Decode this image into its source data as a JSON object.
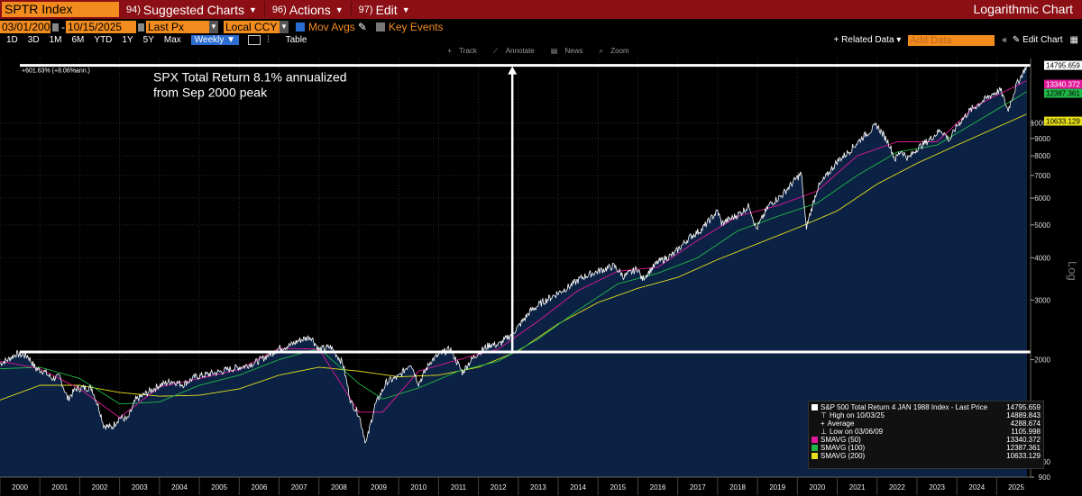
{
  "toolbar": {
    "ticker": "SPTR Index",
    "suggested_num": "94)",
    "suggested_label": "Suggested Charts",
    "actions_num": "96)",
    "actions_label": "Actions",
    "edit_num": "97)",
    "edit_label": "Edit",
    "chart_type": "Logarithmic Chart"
  },
  "inputs": {
    "start_date": "03/01/2000",
    "end_date": "10/15/2025",
    "price_field": "Last Px",
    "currency": "Local CCY",
    "mov_avgs": "Mov Avgs",
    "key_events": "Key Events"
  },
  "periods": {
    "items": [
      "1D",
      "3D",
      "1M",
      "6M",
      "YTD",
      "1Y",
      "5Y",
      "Max"
    ],
    "frequency": "Weekly",
    "table": "Table",
    "related_data": "Related Data",
    "add_data_placeholder": "Add Data",
    "edit_chart": "Edit Chart"
  },
  "tools": {
    "track": "Track",
    "annotate": "Annotate",
    "news": "News",
    "zoom": "Zoom"
  },
  "colors": {
    "accent": "#f28c1e",
    "titlebar": "#8b0f14",
    "price_line": "#ffffff",
    "sma50": "#e0189a",
    "sma100": "#20b848",
    "sma200": "#e6e01a",
    "area_fill": "#0c2244"
  },
  "legend": {
    "title": "S&P 500 Total Return 4 JAN 1988 Index - Last Price",
    "last_price": "14795.659",
    "high_label": "High on 10/03/25",
    "high_value": "14889.843",
    "avg_label": "Average",
    "avg_value": "4288.674",
    "low_label": "Low on 03/06/09",
    "low_value": "1105.998",
    "sma50_label": "SMAVG (50)",
    "sma50_value": "13340.372",
    "sma100_label": "SMAVG (100)",
    "sma100_value": "12387.361",
    "sma200_label": "SMAVG (200)",
    "sma200_value": "10633.129"
  },
  "chart_data": {
    "type": "line",
    "scale": "log",
    "ylim": [
      900,
      15500
    ],
    "xlim": [
      2000.0,
      2025.85
    ],
    "y_ticks": [
      900,
      1000,
      2000,
      3000,
      4000,
      5000,
      6000,
      7000,
      8000,
      9000,
      10000
    ],
    "x_ticks": [
      "2000",
      "2001",
      "2002",
      "2003",
      "2004",
      "2005",
      "2006",
      "2007",
      "2008",
      "2009",
      "2010",
      "2011",
      "2012",
      "2013",
      "2014",
      "2015",
      "2016",
      "2017",
      "2018",
      "2019",
      "2020",
      "2021",
      "2022",
      "2023",
      "2024",
      "2025"
    ],
    "annotations": {
      "text_line1": "SPX Total Return 8.1% annualized",
      "text_line2": "from Sep 2000 peak",
      "change_label": "+601.63% (+8.06%ann.)",
      "base_level": 2108,
      "top_level": 14795.659,
      "arrow_x": 2012.85
    },
    "price_tags": [
      {
        "value": 14795.659,
        "label": "14795.659",
        "color": "#ffffff",
        "text_color": "#000000"
      },
      {
        "value": 13340.372,
        "label": "13340.372",
        "color": "#e0189a",
        "text_color": "#ffffff"
      },
      {
        "value": 12387.361,
        "label": "12387.361",
        "color": "#20b848",
        "text_color": "#000000"
      },
      {
        "value": 10633.129,
        "label": "10633.129",
        "color": "#e6e01a",
        "text_color": "#000000"
      }
    ],
    "y_side_label": "Log",
    "series": [
      {
        "name": "S&P 500 Total Return",
        "x": [
          2000.0,
          2000.2,
          2000.4,
          2000.7,
          2000.9,
          2001.1,
          2001.3,
          2001.5,
          2001.7,
          2001.9,
          2002.1,
          2002.3,
          2002.5,
          2002.6,
          2002.8,
          2003.0,
          2003.2,
          2003.4,
          2003.7,
          2004.0,
          2004.3,
          2004.6,
          2004.9,
          2005.2,
          2005.5,
          2005.8,
          2006.1,
          2006.4,
          2006.7,
          2007.0,
          2007.3,
          2007.5,
          2007.8,
          2008.0,
          2008.3,
          2008.6,
          2008.8,
          2009.0,
          2009.18,
          2009.4,
          2009.7,
          2010.0,
          2010.3,
          2010.5,
          2010.8,
          2011.1,
          2011.3,
          2011.6,
          2011.75,
          2012.0,
          2012.3,
          2012.5,
          2012.8,
          2013.0,
          2013.3,
          2013.6,
          2014.0,
          2014.3,
          2014.6,
          2015.0,
          2015.4,
          2015.65,
          2016.0,
          2016.1,
          2016.5,
          2016.9,
          2017.3,
          2017.6,
          2018.0,
          2018.1,
          2018.5,
          2018.8,
          2018.97,
          2019.3,
          2019.6,
          2019.9,
          2020.1,
          2020.22,
          2020.5,
          2020.8,
          2021.0,
          2021.3,
          2021.6,
          2021.99,
          2022.3,
          2022.45,
          2022.6,
          2022.78,
          2023.0,
          2023.3,
          2023.6,
          2023.82,
          2024.0,
          2024.3,
          2024.6,
          2024.9,
          2025.1,
          2025.28,
          2025.5,
          2025.76
        ],
        "values": [
          1950,
          2000,
          2080,
          2050,
          1880,
          1850,
          1760,
          1780,
          1530,
          1640,
          1650,
          1650,
          1420,
          1280,
          1260,
          1350,
          1330,
          1520,
          1600,
          1680,
          1730,
          1690,
          1780,
          1810,
          1840,
          1880,
          1910,
          1960,
          2050,
          2160,
          2210,
          2280,
          2340,
          2140,
          2180,
          1950,
          1500,
          1380,
          1130,
          1460,
          1720,
          1780,
          1960,
          1700,
          1980,
          2100,
          2150,
          1830,
          1950,
          2100,
          2220,
          2210,
          2360,
          2500,
          2780,
          2950,
          3150,
          3300,
          3500,
          3650,
          3780,
          3520,
          3720,
          3450,
          3880,
          4100,
          4600,
          4850,
          5500,
          5050,
          5350,
          5700,
          4850,
          5750,
          6100,
          6700,
          7100,
          4900,
          6400,
          7150,
          7700,
          8250,
          9000,
          9850,
          8700,
          7800,
          8300,
          7850,
          8400,
          8900,
          9550,
          8900,
          9800,
          10800,
          11500,
          12200,
          12500,
          10900,
          13000,
          14795
        ]
      },
      {
        "name": "SMAVG (50)",
        "x": [
          2000.0,
          2001.0,
          2002.0,
          2003.0,
          2004.0,
          2005.0,
          2006.0,
          2007.0,
          2008.0,
          2009.0,
          2009.6,
          2010.5,
          2011.5,
          2012.5,
          2013.5,
          2014.5,
          2015.5,
          2016.5,
          2017.5,
          2018.5,
          2019.5,
          2020.5,
          2021.5,
          2022.5,
          2023.5,
          2024.5,
          2025.76
        ],
        "values": [
          1980,
          1880,
          1640,
          1350,
          1660,
          1760,
          1870,
          2160,
          2150,
          1400,
          1400,
          1850,
          2000,
          2150,
          2600,
          3200,
          3650,
          3750,
          4500,
          5300,
          5700,
          6300,
          8000,
          8800,
          8800,
          11300,
          13340
        ]
      },
      {
        "name": "SMAVG (100)",
        "x": [
          2000.0,
          2001.0,
          2002.0,
          2003.0,
          2004.0,
          2005.0,
          2006.0,
          2007.0,
          2008.0,
          2009.0,
          2009.6,
          2010.5,
          2011.5,
          2012.5,
          2013.5,
          2014.5,
          2015.5,
          2016.5,
          2017.5,
          2018.5,
          2019.5,
          2020.5,
          2021.5,
          2022.5,
          2023.5,
          2024.5,
          2025.76
        ],
        "values": [
          1880,
          1900,
          1760,
          1480,
          1500,
          1680,
          1800,
          2000,
          2160,
          1700,
          1530,
          1650,
          1850,
          1980,
          2300,
          2800,
          3350,
          3600,
          4000,
          4800,
          5300,
          5800,
          7000,
          8200,
          8600,
          10100,
          12387
        ]
      },
      {
        "name": "SMAVG (200)",
        "x": [
          2000.0,
          2001.0,
          2002.0,
          2003.0,
          2004.0,
          2005.0,
          2006.0,
          2007.0,
          2008.0,
          2009.0,
          2010.0,
          2011.0,
          2012.0,
          2013.0,
          2014.0,
          2015.0,
          2016.0,
          2017.0,
          2018.0,
          2019.0,
          2020.0,
          2021.0,
          2022.0,
          2023.0,
          2024.0,
          2025.76
        ],
        "values": [
          1520,
          1680,
          1680,
          1600,
          1560,
          1570,
          1640,
          1800,
          1900,
          1850,
          1780,
          1800,
          1900,
          2120,
          2550,
          2950,
          3250,
          3500,
          3950,
          4400,
          4900,
          5500,
          6600,
          7600,
          8600,
          10633
        ]
      }
    ]
  }
}
